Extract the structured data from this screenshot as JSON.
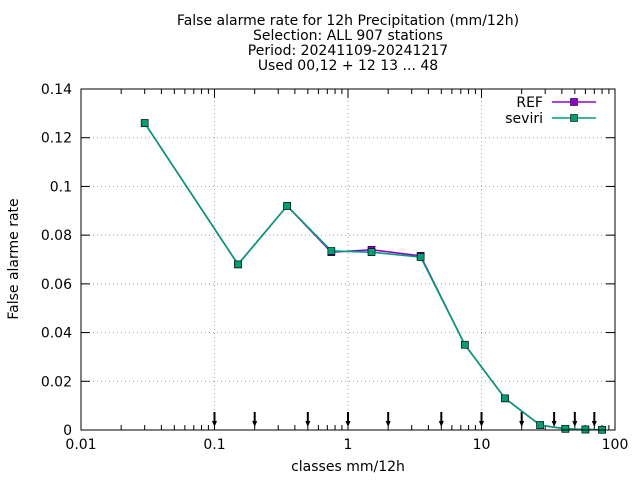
{
  "chart_data": {
    "type": "line",
    "title_lines": [
      "False alarme rate  for 12h Precipitation (mm/12h)",
      "Selection: ALL    907 stations",
      "Period: 20241109-20241217",
      "Used 00,12 + 12 13 ... 48"
    ],
    "xlabel": "classes mm/12h",
    "ylabel": "False alarme rate",
    "x_scale": "log",
    "xlim": [
      0.01,
      100
    ],
    "ylim": [
      0,
      0.14
    ],
    "x_ticks": [
      0.01,
      0.1,
      1,
      10,
      100
    ],
    "x_tick_labels": [
      "0.01",
      "0.1",
      "1",
      "10",
      "100"
    ],
    "y_ticks": [
      0,
      0.02,
      0.04,
      0.06,
      0.08,
      0.1,
      0.12,
      0.14
    ],
    "y_tick_labels": [
      "0",
      "0.02",
      "0.04",
      "0.06",
      "0.08",
      "0.1",
      "0.12",
      "0.14"
    ],
    "grid": true,
    "legend_position": "top-right",
    "class_threshold_arrows": [
      0.1,
      0.2,
      0.5,
      1,
      2,
      5,
      10,
      20,
      35,
      50,
      70
    ],
    "series": [
      {
        "name": "REF",
        "color": "#9400d3",
        "x": [
          0.03,
          0.15,
          0.35,
          0.75,
          1.5,
          3.5,
          7.5,
          15,
          27.5,
          42.5,
          60,
          80
        ],
        "values": [
          0.126,
          0.068,
          0.092,
          0.073,
          0.074,
          0.0715,
          0.035,
          0.013,
          0.002,
          0.0005,
          0.0002,
          0.0001
        ]
      },
      {
        "name": "seviri",
        "color": "#009e73",
        "x": [
          0.03,
          0.15,
          0.35,
          0.75,
          1.5,
          3.5,
          7.5,
          15,
          27.5,
          42.5,
          60,
          80
        ],
        "values": [
          0.126,
          0.068,
          0.092,
          0.0735,
          0.073,
          0.071,
          0.035,
          0.013,
          0.002,
          0.0005,
          0.0002,
          0.0001
        ]
      }
    ]
  }
}
